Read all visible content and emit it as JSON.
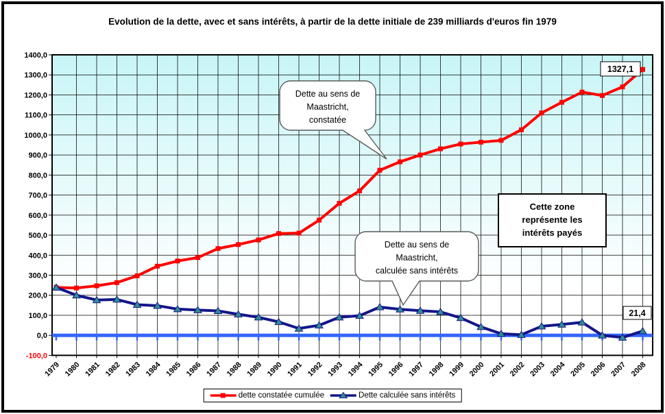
{
  "chart": {
    "title": "Evolution de la dette, avec et sans intérêts, à partir de la dette initiale de 239 milliards d'euros fin 1979",
    "y_tick_labels": [
      "-100,0",
      "0,0",
      "100,0",
      "200,0",
      "300,0",
      "400,0",
      "500,0",
      "600,0",
      "700,0",
      "800,0",
      "900,0",
      "1000,0",
      "1100,0",
      "1200,0",
      "1300,0",
      "1400,0"
    ],
    "annotations": {
      "callout_red": {
        "lines": [
          "Dette au sens de",
          "Maastricht,",
          "constatée"
        ]
      },
      "callout_blue": {
        "lines": [
          "Dette au sens de",
          "Maastricht,",
          "calculée sans intérêts"
        ]
      },
      "zone_box": {
        "lines": [
          "Cette zone",
          "représente les",
          "intérêts payés"
        ]
      },
      "end_label_red": "1327,1",
      "end_label_blue": "21,4"
    },
    "legend": {
      "red_label": "dette constatée cumulée",
      "blue_label": "Dette calculée sans intérêts"
    },
    "colors": {
      "red": "#FF0000",
      "navy": "#15158A",
      "teal": "#2E8F8F",
      "axis_blue": "#3366FF",
      "plot_top": "#C8F5F7",
      "plot_bottom": "#FFFFFF",
      "negative_tick": "#FF0000"
    }
  },
  "chart_data": {
    "type": "line",
    "categories": [
      "1979",
      "1980",
      "1981",
      "1982",
      "1983",
      "1984",
      "1985",
      "1986",
      "1987",
      "1988",
      "1989",
      "1990",
      "1991",
      "1992",
      "1993",
      "1994",
      "1995",
      "1996",
      "1997",
      "1998",
      "1999",
      "2000",
      "2001",
      "2002",
      "2003",
      "2004",
      "2005",
      "2006",
      "2007",
      "2008"
    ],
    "series": [
      {
        "name": "dette constatée cumulée",
        "color": "#FF0000",
        "marker": "square",
        "values": [
          239,
          236,
          247,
          263,
          297,
          345,
          371,
          388,
          433,
          453,
          476,
          508,
          510,
          575,
          659,
          721,
          824,
          866,
          900,
          931,
          955,
          964,
          973,
          1026,
          1110,
          1163,
          1214,
          1197,
          1240,
          1327.1
        ]
      },
      {
        "name": "Dette calculée sans intérêts",
        "color": "#15158A",
        "marker": "triangle",
        "values": [
          239,
          200,
          176,
          179,
          153,
          148,
          131,
          126,
          122,
          105,
          90,
          67,
          34,
          50,
          90,
          98,
          141,
          130,
          123,
          117,
          87,
          42,
          8,
          3,
          45,
          54,
          65,
          0,
          -11,
          21.4
        ]
      }
    ],
    "ylim": [
      -100,
      1400
    ],
    "ytick_step": 100,
    "grid": true,
    "legend_position": "bottom",
    "xlabel": "",
    "ylabel": ""
  }
}
